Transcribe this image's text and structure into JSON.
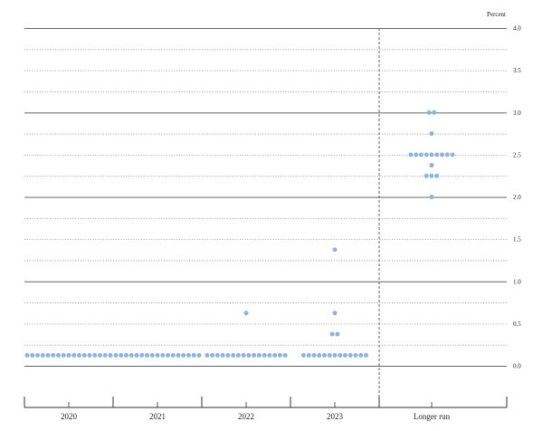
{
  "chart_data": {
    "type": "scatter",
    "title": "",
    "ylabel": "Percent",
    "ylim": [
      0,
      4
    ],
    "yticks": [
      "0.0",
      "0.5",
      "1.0",
      "1.5",
      "2.0",
      "2.5",
      "3.0",
      "3.5",
      "4.0"
    ],
    "categories": [
      "2020",
      "2021",
      "2022",
      "2023",
      "Longer run"
    ],
    "grid": true,
    "dot_color": "#8fb4d9",
    "series": [
      {
        "category": "2020",
        "points": [
          {
            "y": 0.125,
            "count": 17
          }
        ]
      },
      {
        "category": "2021",
        "points": [
          {
            "y": 0.125,
            "count": 17
          }
        ]
      },
      {
        "category": "2022",
        "points": [
          {
            "y": 0.125,
            "count": 16
          },
          {
            "y": 0.625,
            "count": 1
          }
        ]
      },
      {
        "category": "2023",
        "points": [
          {
            "y": 0.125,
            "count": 13
          },
          {
            "y": 0.375,
            "count": 2
          },
          {
            "y": 0.625,
            "count": 1
          },
          {
            "y": 1.375,
            "count": 1
          }
        ]
      },
      {
        "category": "Longer run",
        "points": [
          {
            "y": 2.0,
            "count": 1
          },
          {
            "y": 2.25,
            "count": 3
          },
          {
            "y": 2.375,
            "count": 1
          },
          {
            "y": 2.5,
            "count": 9
          },
          {
            "y": 2.75,
            "count": 1
          },
          {
            "y": 3.0,
            "count": 2
          }
        ]
      }
    ]
  }
}
